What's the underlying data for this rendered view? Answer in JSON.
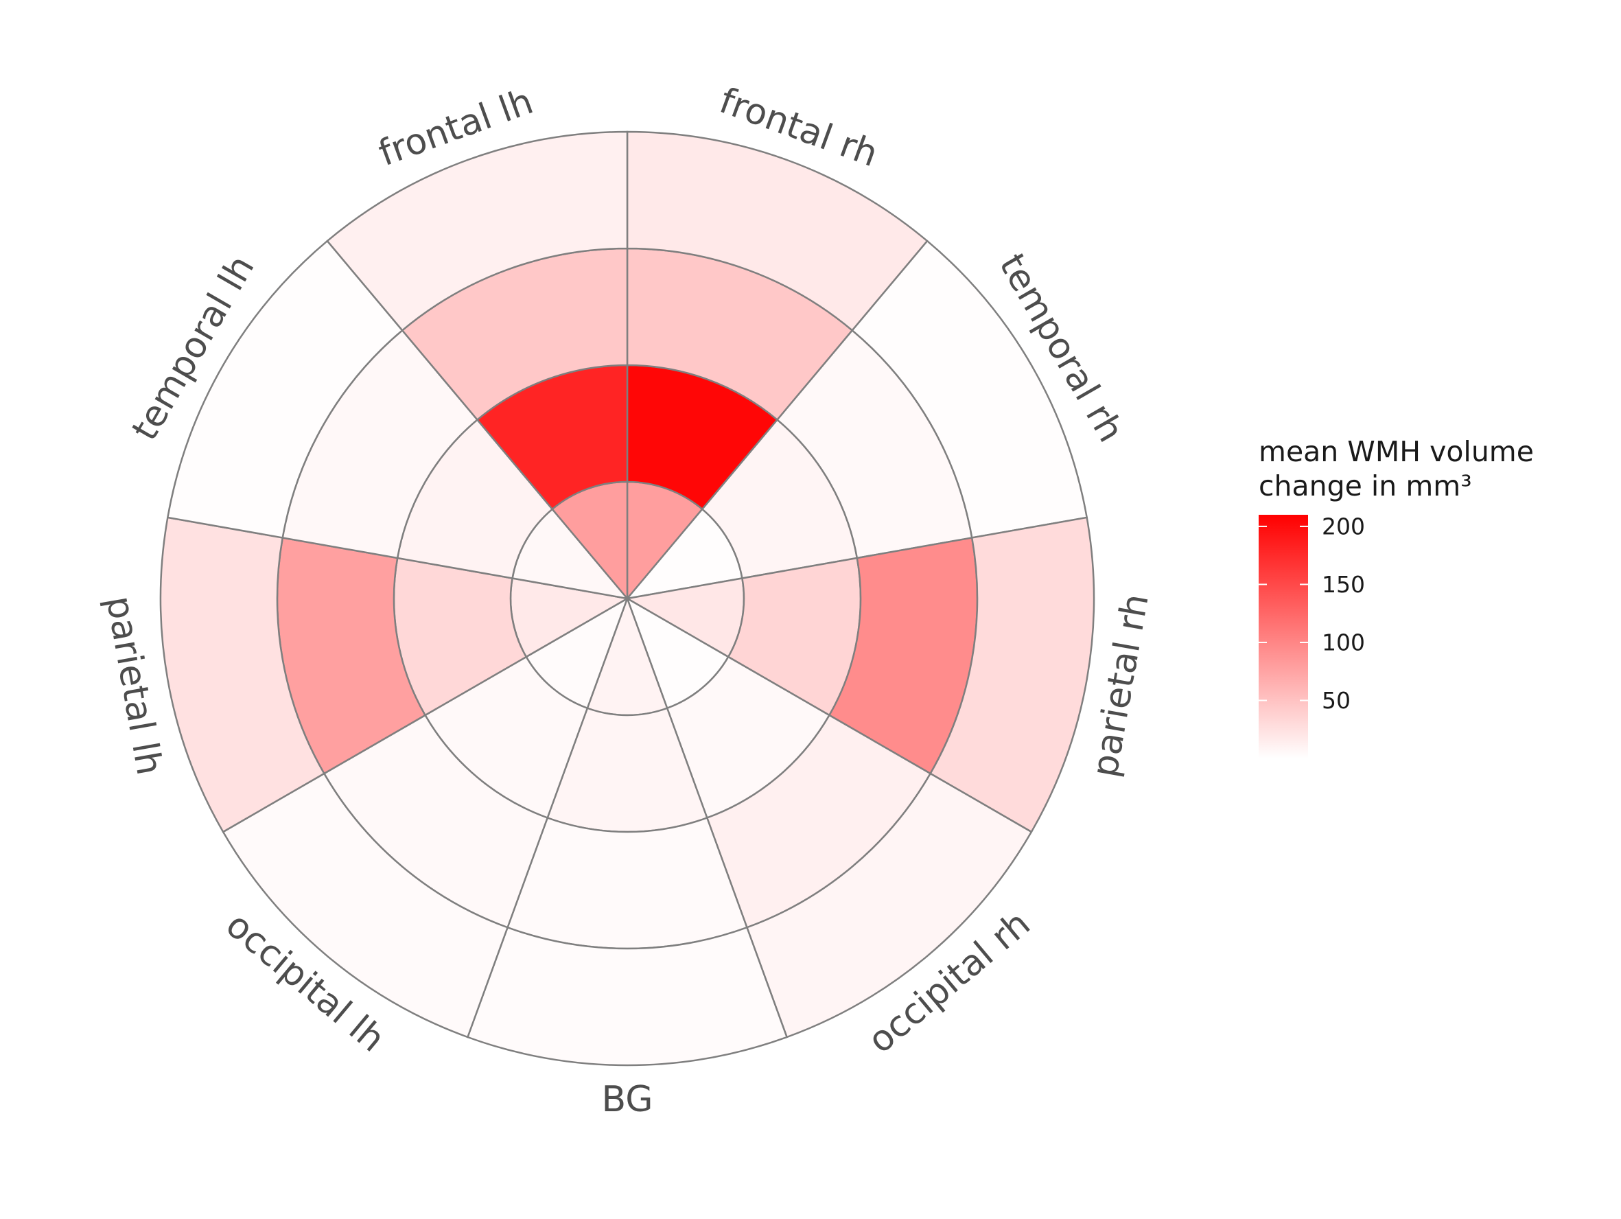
{
  "chart_data": {
    "type": "polar-heatmap",
    "categories": [
      "frontal rh",
      "temporal rh",
      "parietal rh",
      "occipital rh",
      "BG",
      "occipital lh",
      "parietal lh",
      "temporal lh",
      "frontal lh"
    ],
    "rings": [
      "1",
      "2",
      "3",
      "4"
    ],
    "values": [
      [
        80,
        205,
        45,
        18
      ],
      [
        2,
        8,
        5,
        2
      ],
      [
        20,
        35,
        95,
        30
      ],
      [
        2,
        5,
        12,
        8
      ],
      [
        10,
        8,
        4,
        3
      ],
      [
        3,
        5,
        5,
        4
      ],
      [
        18,
        32,
        78,
        25
      ],
      [
        6,
        10,
        6,
        2
      ],
      [
        80,
        180,
        45,
        12
      ]
    ],
    "legend": {
      "title_line1": "mean WMH volume",
      "title_line2": "change in mm³",
      "ticks": [
        "50",
        "100",
        "150",
        "200"
      ],
      "tick_values": [
        50,
        100,
        150,
        200
      ],
      "range": [
        0,
        210
      ],
      "low_color": "#ffffff",
      "high_color": "#ff0000"
    },
    "grid": true,
    "legend_position": "right"
  }
}
